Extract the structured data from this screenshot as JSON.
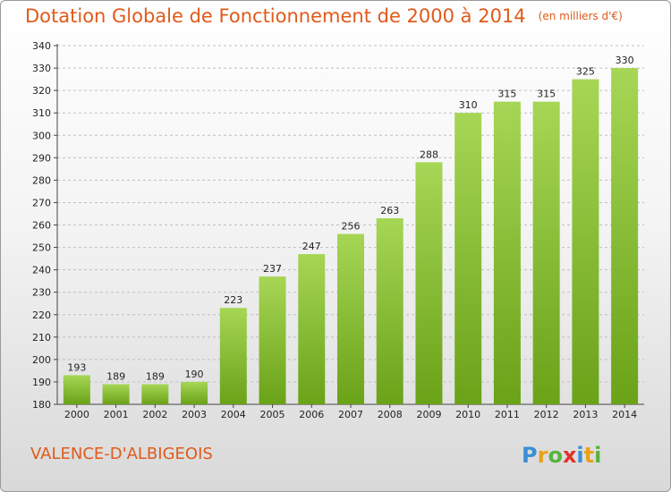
{
  "header": {
    "title": "Dotation Globale de Fonctionnement de 2000 à 2014",
    "unit": "(en milliers d'€)"
  },
  "footer": {
    "town": "VALENCE-D'ALBIGEOIS",
    "logo_text": "Proxiti"
  },
  "colors": {
    "title": "#e05a1a",
    "bar_light": "#a6d655",
    "bar_dark": "#6aa218",
    "grid": "#bfbfbf"
  },
  "chart_data": {
    "type": "bar",
    "title": "Dotation Globale de Fonctionnement de 2000 à 2014",
    "subtitle": "(en milliers d'€)",
    "xlabel": "",
    "ylabel": "",
    "categories": [
      "2000",
      "2001",
      "2002",
      "2003",
      "2004",
      "2005",
      "2006",
      "2007",
      "2008",
      "2009",
      "2010",
      "2011",
      "2012",
      "2013",
      "2014"
    ],
    "values": [
      193,
      189,
      189,
      190,
      223,
      237,
      247,
      256,
      263,
      288,
      310,
      315,
      315,
      325,
      330
    ],
    "ylim": [
      180,
      340
    ],
    "ytick_step": 10,
    "grid": "horizontal dashed",
    "legend": "none"
  }
}
